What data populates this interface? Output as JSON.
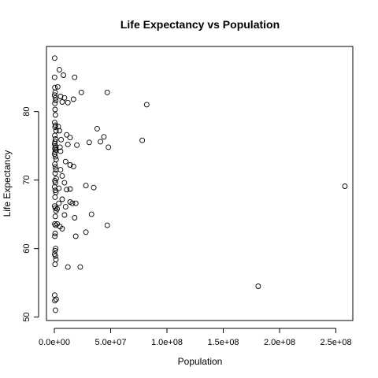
{
  "chart_data": {
    "type": "scatter",
    "title": "Life Expectancy vs  Population",
    "xlabel": "Population",
    "ylabel": "Life Expectancy",
    "xlim": [
      -7000000,
      265000000
    ],
    "ylim": [
      49.5,
      89.5
    ],
    "x_ticks": [
      0,
      50000000,
      100000000,
      150000000,
      200000000,
      250000000
    ],
    "x_tick_labels": [
      "0.0e+00",
      "5.0e+07",
      "1.0e+08",
      "1.5e+08",
      "2.0e+08",
      "2.5e+08"
    ],
    "y_ticks": [
      50,
      60,
      70,
      80
    ],
    "y_tick_labels": [
      "50",
      "60",
      "70",
      "80"
    ],
    "grid": false,
    "legend": "none",
    "points": [
      [
        300000,
        87.8
      ],
      [
        200000,
        85.0
      ],
      [
        500000,
        83.5
      ],
      [
        700000,
        82.8
      ],
      [
        300000,
        82.4
      ],
      [
        800000,
        82.0
      ],
      [
        1200000,
        81.6
      ],
      [
        500000,
        81.2
      ],
      [
        600000,
        80.3
      ],
      [
        900000,
        79.5
      ],
      [
        300000,
        78.4
      ],
      [
        1100000,
        78.0
      ],
      [
        600000,
        77.7
      ],
      [
        1500000,
        77.2
      ],
      [
        400000,
        76.5
      ],
      [
        1000000,
        76.0
      ],
      [
        700000,
        75.6
      ],
      [
        300000,
        75.3
      ],
      [
        800000,
        75.0
      ],
      [
        1300000,
        74.8
      ],
      [
        500000,
        74.6
      ],
      [
        1100000,
        74.4
      ],
      [
        700000,
        74.1
      ],
      [
        300000,
        73.8
      ],
      [
        900000,
        73.4
      ],
      [
        1500000,
        73.0
      ],
      [
        400000,
        72.3
      ],
      [
        900000,
        71.9
      ],
      [
        1300000,
        71.5
      ],
      [
        700000,
        71.0
      ],
      [
        1700000,
        70.2
      ],
      [
        500000,
        69.9
      ],
      [
        1000000,
        69.6
      ],
      [
        300000,
        69.0
      ],
      [
        800000,
        68.5
      ],
      [
        1400000,
        68.2
      ],
      [
        600000,
        67.5
      ],
      [
        300000,
        66.2
      ],
      [
        900000,
        65.9
      ],
      [
        1500000,
        65.5
      ],
      [
        800000,
        64.7
      ],
      [
        400000,
        63.6
      ],
      [
        1100000,
        63.4
      ],
      [
        700000,
        62.2
      ],
      [
        400000,
        61.8
      ],
      [
        1200000,
        60.0
      ],
      [
        600000,
        59.7
      ],
      [
        300000,
        59.2
      ],
      [
        900000,
        58.9
      ],
      [
        1400000,
        58.4
      ],
      [
        600000,
        57.7
      ],
      [
        300000,
        53.2
      ],
      [
        1600000,
        52.6
      ],
      [
        400000,
        52.4
      ],
      [
        1000000,
        51.0
      ],
      [
        4500000,
        86.1
      ],
      [
        8000000,
        85.3
      ],
      [
        3000000,
        83.6
      ],
      [
        5500000,
        82.2
      ],
      [
        9000000,
        82.0
      ],
      [
        7000000,
        81.4
      ],
      [
        12000000,
        81.3
      ],
      [
        17000000,
        81.8
      ],
      [
        18000000,
        85.0
      ],
      [
        24000000,
        82.8
      ],
      [
        47000000,
        82.8
      ],
      [
        82000000,
        81.0
      ],
      [
        3500000,
        77.8
      ],
      [
        4500000,
        77.2
      ],
      [
        11000000,
        76.6
      ],
      [
        14000000,
        76.2
      ],
      [
        6000000,
        75.9
      ],
      [
        12000000,
        75.2
      ],
      [
        20000000,
        75.1
      ],
      [
        5000000,
        74.8
      ],
      [
        5500000,
        74.2
      ],
      [
        10000000,
        72.7
      ],
      [
        14000000,
        72.2
      ],
      [
        17000000,
        72.0
      ],
      [
        5500000,
        71.5
      ],
      [
        7000000,
        70.6
      ],
      [
        38000000,
        77.5
      ],
      [
        44000000,
        76.3
      ],
      [
        41000000,
        75.6
      ],
      [
        31000000,
        75.5
      ],
      [
        48000000,
        74.8
      ],
      [
        78000000,
        75.8
      ],
      [
        9000000,
        69.6
      ],
      [
        4000000,
        68.8
      ],
      [
        11000000,
        68.6
      ],
      [
        14000000,
        68.7
      ],
      [
        28000000,
        69.2
      ],
      [
        35000000,
        68.9
      ],
      [
        7000000,
        67.2
      ],
      [
        4000000,
        66.6
      ],
      [
        14000000,
        66.8
      ],
      [
        16000000,
        66.6
      ],
      [
        10000000,
        66.1
      ],
      [
        19000000,
        66.6
      ],
      [
        2500000,
        65.8
      ],
      [
        9000000,
        64.9
      ],
      [
        18000000,
        64.5
      ],
      [
        33000000,
        65.0
      ],
      [
        2500000,
        63.6
      ],
      [
        5000000,
        63.2
      ],
      [
        7000000,
        62.9
      ],
      [
        47000000,
        63.4
      ],
      [
        28000000,
        62.4
      ],
      [
        19000000,
        61.8
      ],
      [
        12000000,
        57.3
      ],
      [
        23000000,
        57.3
      ],
      [
        181000000,
        54.5
      ],
      [
        258000000,
        69.1
      ]
    ]
  }
}
